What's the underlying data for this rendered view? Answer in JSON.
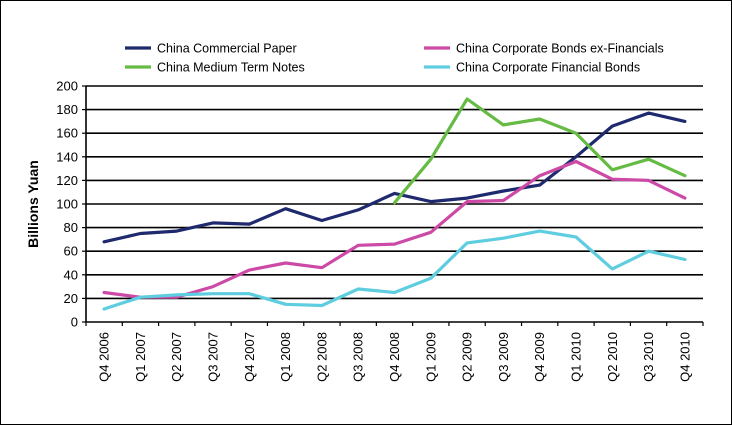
{
  "chart_data": {
    "type": "line",
    "ylabel": "Billions Yuan",
    "xlabel": "",
    "ylim": [
      0,
      200
    ],
    "yticks": [
      0,
      20,
      40,
      60,
      80,
      100,
      120,
      140,
      160,
      180,
      200
    ],
    "grid": "horizontal",
    "legend_placement": "top",
    "categories": [
      "Q4 2006",
      "Q1 2007",
      "Q2 2007",
      "Q3 2007",
      "Q4 2007",
      "Q1 2008",
      "Q2 2008",
      "Q3 2008",
      "Q4 2008",
      "Q1 2009",
      "Q2 2009",
      "Q3 2009",
      "Q4 2009",
      "Q1 2010",
      "Q2 2010",
      "Q3 2010",
      "Q4 2010"
    ],
    "series": [
      {
        "name": "China Commercial Paper",
        "color": "#1f2a6e",
        "values": [
          68,
          75,
          77,
          84,
          83,
          96,
          86,
          95,
          109,
          102,
          105,
          111,
          116,
          140,
          166,
          177,
          170
        ]
      },
      {
        "name": "China Medium Term Notes",
        "color": "#66bb44",
        "values": [
          null,
          null,
          null,
          null,
          null,
          null,
          null,
          null,
          101,
          138,
          189,
          167,
          172,
          160,
          129,
          138,
          124
        ]
      },
      {
        "name": "China Corporate Bonds ex-Financials",
        "color": "#cc4aa6",
        "values": [
          25,
          21,
          21,
          30,
          44,
          50,
          46,
          65,
          66,
          76,
          102,
          103,
          124,
          136,
          121,
          120,
          105
        ]
      },
      {
        "name": "China Corporate Financial Bonds",
        "color": "#5fcde0",
        "values": [
          11,
          21,
          23,
          24,
          24,
          15,
          14,
          28,
          25,
          37,
          67,
          71,
          77,
          72,
          45,
          60,
          53
        ]
      }
    ]
  }
}
